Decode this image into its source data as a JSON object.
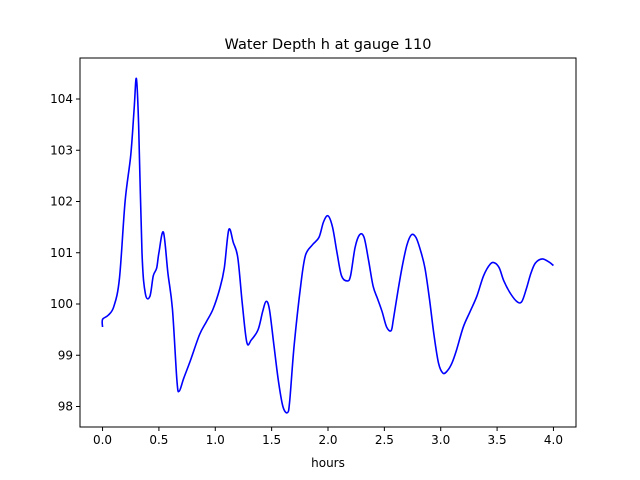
{
  "chart_data": {
    "type": "line",
    "title": "Water Depth h at gauge 110",
    "xlabel": "hours",
    "ylabel": "",
    "xlim": [
      -0.2,
      4.2
    ],
    "ylim": [
      97.6,
      104.8
    ],
    "x_ticks": [
      0.0,
      0.5,
      1.0,
      1.5,
      2.0,
      2.5,
      3.0,
      3.5,
      4.0
    ],
    "x_tick_labels": [
      "0.0",
      "0.5",
      "1.0",
      "1.5",
      "2.0",
      "2.5",
      "3.0",
      "3.5",
      "4.0"
    ],
    "y_ticks": [
      98,
      99,
      100,
      101,
      102,
      103,
      104
    ],
    "y_tick_labels": [
      "98",
      "99",
      "100",
      "101",
      "102",
      "103",
      "104"
    ],
    "grid": false,
    "line_color": "#0000ff",
    "series": [
      {
        "name": "",
        "x": [
          0.0,
          0.0,
          0.05,
          0.1,
          0.15,
          0.2,
          0.25,
          0.28,
          0.3,
          0.32,
          0.35,
          0.38,
          0.42,
          0.45,
          0.48,
          0.5,
          0.54,
          0.58,
          0.62,
          0.66,
          0.68,
          0.72,
          0.78,
          0.86,
          0.92,
          0.98,
          1.04,
          1.08,
          1.12,
          1.16,
          1.2,
          1.24,
          1.28,
          1.32,
          1.38,
          1.42,
          1.45,
          1.48,
          1.52,
          1.56,
          1.6,
          1.64,
          1.66,
          1.7,
          1.76,
          1.8,
          1.86,
          1.92,
          1.96,
          2.0,
          2.04,
          2.08,
          2.12,
          2.17,
          2.2,
          2.24,
          2.28,
          2.32,
          2.36,
          2.4,
          2.44,
          2.48,
          2.52,
          2.56,
          2.58,
          2.62,
          2.66,
          2.7,
          2.74,
          2.78,
          2.82,
          2.86,
          2.9,
          2.94,
          2.98,
          3.02,
          3.06,
          3.1,
          3.14,
          3.2,
          3.26,
          3.32,
          3.38,
          3.44,
          3.48,
          3.52,
          3.56,
          3.62,
          3.68,
          3.72,
          3.76,
          3.8,
          3.84,
          3.9,
          3.96,
          4.0
        ],
        "values": [
          99.55,
          99.7,
          99.78,
          99.95,
          100.5,
          102.0,
          102.9,
          103.8,
          104.4,
          103.5,
          101.0,
          100.2,
          100.15,
          100.55,
          100.7,
          101.0,
          101.4,
          100.6,
          99.9,
          98.5,
          98.3,
          98.55,
          98.9,
          99.4,
          99.65,
          99.9,
          100.3,
          100.7,
          101.45,
          101.2,
          100.9,
          100.0,
          99.25,
          99.3,
          99.5,
          99.85,
          100.05,
          99.9,
          99.2,
          98.5,
          98.0,
          97.88,
          98.1,
          99.2,
          100.4,
          100.95,
          101.15,
          101.3,
          101.6,
          101.72,
          101.5,
          101.0,
          100.55,
          100.45,
          100.55,
          101.1,
          101.35,
          101.3,
          100.85,
          100.35,
          100.1,
          99.85,
          99.55,
          99.48,
          99.7,
          100.25,
          100.75,
          101.15,
          101.35,
          101.3,
          101.05,
          100.7,
          100.1,
          99.4,
          98.85,
          98.65,
          98.7,
          98.85,
          99.1,
          99.55,
          99.85,
          100.15,
          100.55,
          100.78,
          100.8,
          100.7,
          100.45,
          100.2,
          100.04,
          100.05,
          100.3,
          100.6,
          100.8,
          100.88,
          100.82,
          100.75
        ]
      }
    ]
  }
}
